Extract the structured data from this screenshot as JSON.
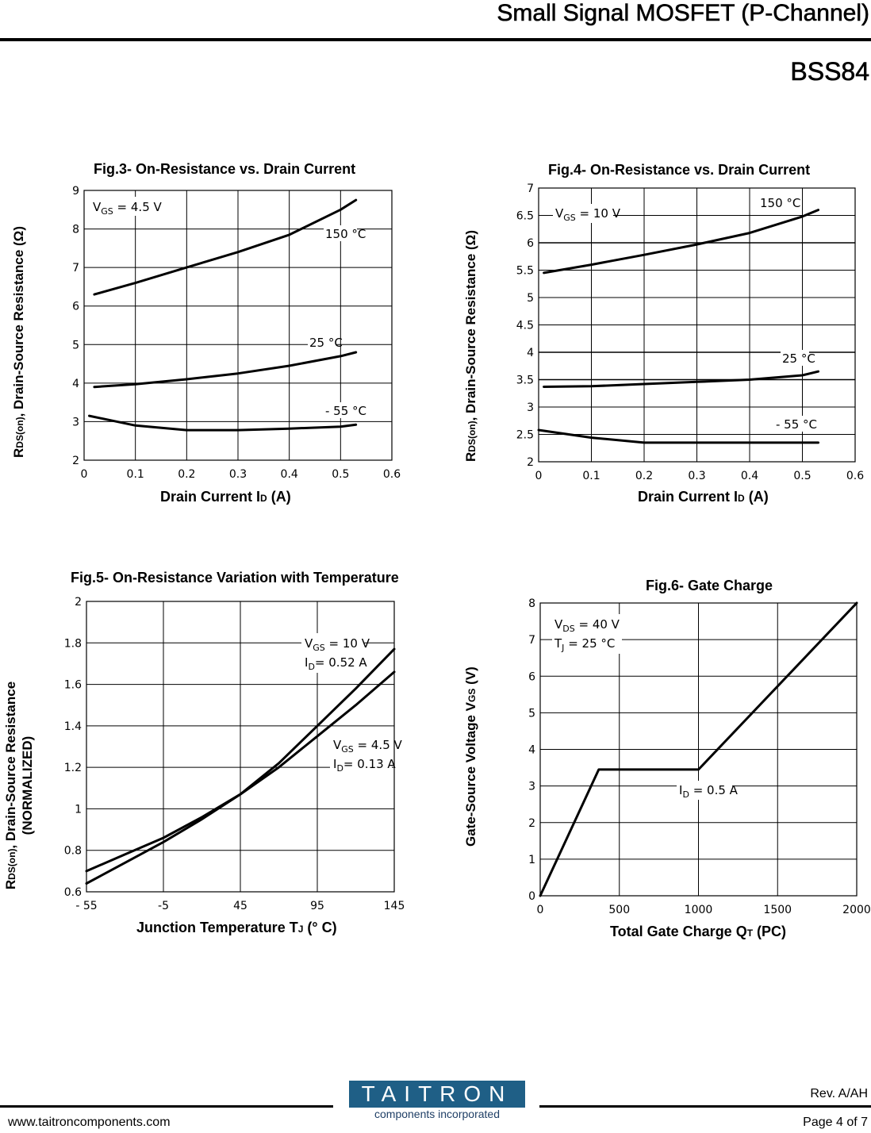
{
  "header": {
    "title": "Small Signal MOSFET (P-Channel)",
    "part": "BSS84"
  },
  "footer": {
    "website": "www.taitroncomponents.com",
    "logo_name": "TAITRON",
    "logo_tagline": "components incorporated",
    "revision": "Rev. A/AH",
    "page": "Page 4 of 7"
  },
  "chart_data": [
    {
      "type": "line",
      "title": "Fig.3- On-Resistance vs. Drain Current",
      "xlabel_pre": "Drain Current I",
      "xlabel_sub": "D",
      "xlabel_post": " (A)",
      "ylabel_pre": "R",
      "ylabel_sub": "DS(on)",
      "ylabel_post": ", Drain-Source Resistance (Ω)",
      "xlim": [
        0,
        0.6
      ],
      "ylim": [
        2,
        9
      ],
      "xticks": [
        0,
        0.1,
        0.2,
        0.3,
        0.4,
        0.5,
        0.6
      ],
      "xtick_labels": [
        "0",
        "0.1",
        "0.2",
        "0.3",
        "0.4",
        "0.5",
        "0.6"
      ],
      "yticks": [
        2,
        3,
        4,
        5,
        6,
        7,
        8,
        9
      ],
      "ytick_labels": [
        "2",
        "3",
        "4",
        "5",
        "6",
        "7",
        "8",
        "9"
      ],
      "condition_pre": "V",
      "condition_sub": "GS",
      "condition_post": " = 4.5  V",
      "series": [
        {
          "name": "150 °C",
          "x": [
            0.02,
            0.1,
            0.2,
            0.3,
            0.4,
            0.5,
            0.53
          ],
          "y": [
            6.3,
            6.6,
            7.0,
            7.4,
            7.85,
            8.5,
            8.75
          ]
        },
        {
          "name": "25 °C",
          "x": [
            0.02,
            0.1,
            0.2,
            0.3,
            0.4,
            0.5,
            0.53
          ],
          "y": [
            3.9,
            3.97,
            4.1,
            4.25,
            4.45,
            4.7,
            4.8
          ]
        },
        {
          "name": "- 55 °C",
          "x": [
            0.01,
            0.1,
            0.2,
            0.3,
            0.4,
            0.5,
            0.53
          ],
          "y": [
            3.15,
            2.9,
            2.78,
            2.78,
            2.82,
            2.87,
            2.92
          ]
        }
      ]
    },
    {
      "type": "line",
      "title": "Fig.4- On-Resistance vs. Drain Current",
      "xlabel_pre": "Drain Current I",
      "xlabel_sub": "D",
      "xlabel_post": " (A)",
      "ylabel_pre": "R",
      "ylabel_sub": "DS(on)",
      "ylabel_post": ", Drain-Source Resistance (Ω)",
      "xlim": [
        0,
        0.6
      ],
      "ylim": [
        2,
        7
      ],
      "xticks": [
        0,
        0.1,
        0.2,
        0.3,
        0.4,
        0.5,
        0.6
      ],
      "xtick_labels": [
        "0",
        "0.1",
        "0.2",
        "0.3",
        "0.4",
        "0.5",
        "0.6"
      ],
      "yticks": [
        2,
        2.5,
        3,
        3.5,
        4,
        4.5,
        5,
        5.5,
        6,
        6.5,
        7
      ],
      "ytick_labels": [
        "2",
        "2.5",
        "3",
        "3.5",
        "4",
        "4.5",
        "5",
        "5.5",
        "6",
        "6.5",
        "7"
      ],
      "condition_pre": "V",
      "condition_sub": "GS",
      "condition_post": " = 10 V",
      "series": [
        {
          "name": "150 °C",
          "x": [
            0.01,
            0.1,
            0.2,
            0.3,
            0.4,
            0.5,
            0.53
          ],
          "y": [
            5.45,
            5.6,
            5.78,
            5.97,
            6.18,
            6.48,
            6.6
          ]
        },
        {
          "name": "25 °C",
          "x": [
            0.01,
            0.1,
            0.2,
            0.3,
            0.4,
            0.5,
            0.53
          ],
          "y": [
            3.37,
            3.38,
            3.42,
            3.46,
            3.5,
            3.58,
            3.65
          ]
        },
        {
          "name": "- 55 °C",
          "x": [
            0.0,
            0.1,
            0.2,
            0.3,
            0.4,
            0.5,
            0.53
          ],
          "y": [
            2.58,
            2.44,
            2.35,
            2.35,
            2.35,
            2.35,
            2.35
          ]
        }
      ]
    },
    {
      "type": "line",
      "title": "Fig.5- On-Resistance Variation with Temperature",
      "xlabel_pre": "Junction Temperature T",
      "xlabel_sub": "J",
      "xlabel_post": " (° C)",
      "ylabel_pre": "R",
      "ylabel_sub": "DS(on)",
      "ylabel_post": ", Drain-Source Resistance",
      "ylabel_line2": "(NORMALIZED)",
      "xlim": [
        -55,
        145
      ],
      "ylim": [
        0.6,
        2
      ],
      "xticks": [
        -55,
        -5,
        45,
        95,
        145
      ],
      "xtick_labels": [
        "- 55",
        "-5",
        "45",
        "95",
        "145"
      ],
      "yticks": [
        0.6,
        0.8,
        1,
        1.2,
        1.4,
        1.6,
        1.8,
        2
      ],
      "ytick_labels": [
        "0.6",
        "0.8",
        "1",
        "1.2",
        "1.4",
        "1.6",
        "1.8",
        "2"
      ],
      "series": [
        {
          "name": "V_GS = 10 V, I_D = 0.52 A",
          "label_l1_pre": "V",
          "label_l1_sub": "GS",
          "label_l1_post": " = 10 V",
          "label_l2_pre": "I",
          "label_l2_sub": "D",
          "label_l2_post": "= 0.52 A",
          "x": [
            -55,
            -30,
            -5,
            20,
            45,
            70,
            95,
            120,
            145
          ],
          "y": [
            0.64,
            0.74,
            0.84,
            0.95,
            1.07,
            1.22,
            1.4,
            1.58,
            1.77
          ]
        },
        {
          "name": "V_GS = 4.5 V, I_D = 0.13 A",
          "label_l1_pre": "V",
          "label_l1_sub": "GS",
          "label_l1_post": " = 4.5 V",
          "label_l2_pre": "I",
          "label_l2_sub": "D",
          "label_l2_post": "= 0.13 A",
          "x": [
            -55,
            -30,
            -5,
            20,
            45,
            70,
            95,
            120,
            145
          ],
          "y": [
            0.7,
            0.78,
            0.86,
            0.96,
            1.07,
            1.2,
            1.35,
            1.5,
            1.66
          ]
        }
      ]
    },
    {
      "type": "line",
      "title": "Fig.6- Gate Charge",
      "xlabel_pre": "Total Gate Charge Q",
      "xlabel_sub": "T",
      "xlabel_post": " (PC)",
      "ylabel_pre": "Gate-Source Voltage V",
      "ylabel_sub": "GS",
      "ylabel_post": " (V)",
      "xlim": [
        0,
        2000
      ],
      "ylim": [
        0,
        8
      ],
      "xticks": [
        0,
        500,
        1000,
        1500,
        2000
      ],
      "xtick_labels": [
        "0",
        "500",
        "1000",
        "1500",
        "2000"
      ],
      "yticks": [
        0,
        1,
        2,
        3,
        4,
        5,
        6,
        7,
        8
      ],
      "ytick_labels": [
        "0",
        "1",
        "2",
        "3",
        "4",
        "5",
        "6",
        "7",
        "8"
      ],
      "condition_pre": "V",
      "condition_sub": "DS",
      "condition_post": " = 40 V",
      "condition2_pre": "T",
      "condition2_sub": "J",
      "condition2_post": " = 25 °C",
      "series": [
        {
          "name": "I_D = 0.5 A",
          "label_pre": "I",
          "label_sub": "D",
          "label_post": " = 0.5 A",
          "x": [
            0,
            370,
            1000,
            2000
          ],
          "y": [
            0,
            3.45,
            3.45,
            8.0
          ]
        }
      ]
    }
  ]
}
